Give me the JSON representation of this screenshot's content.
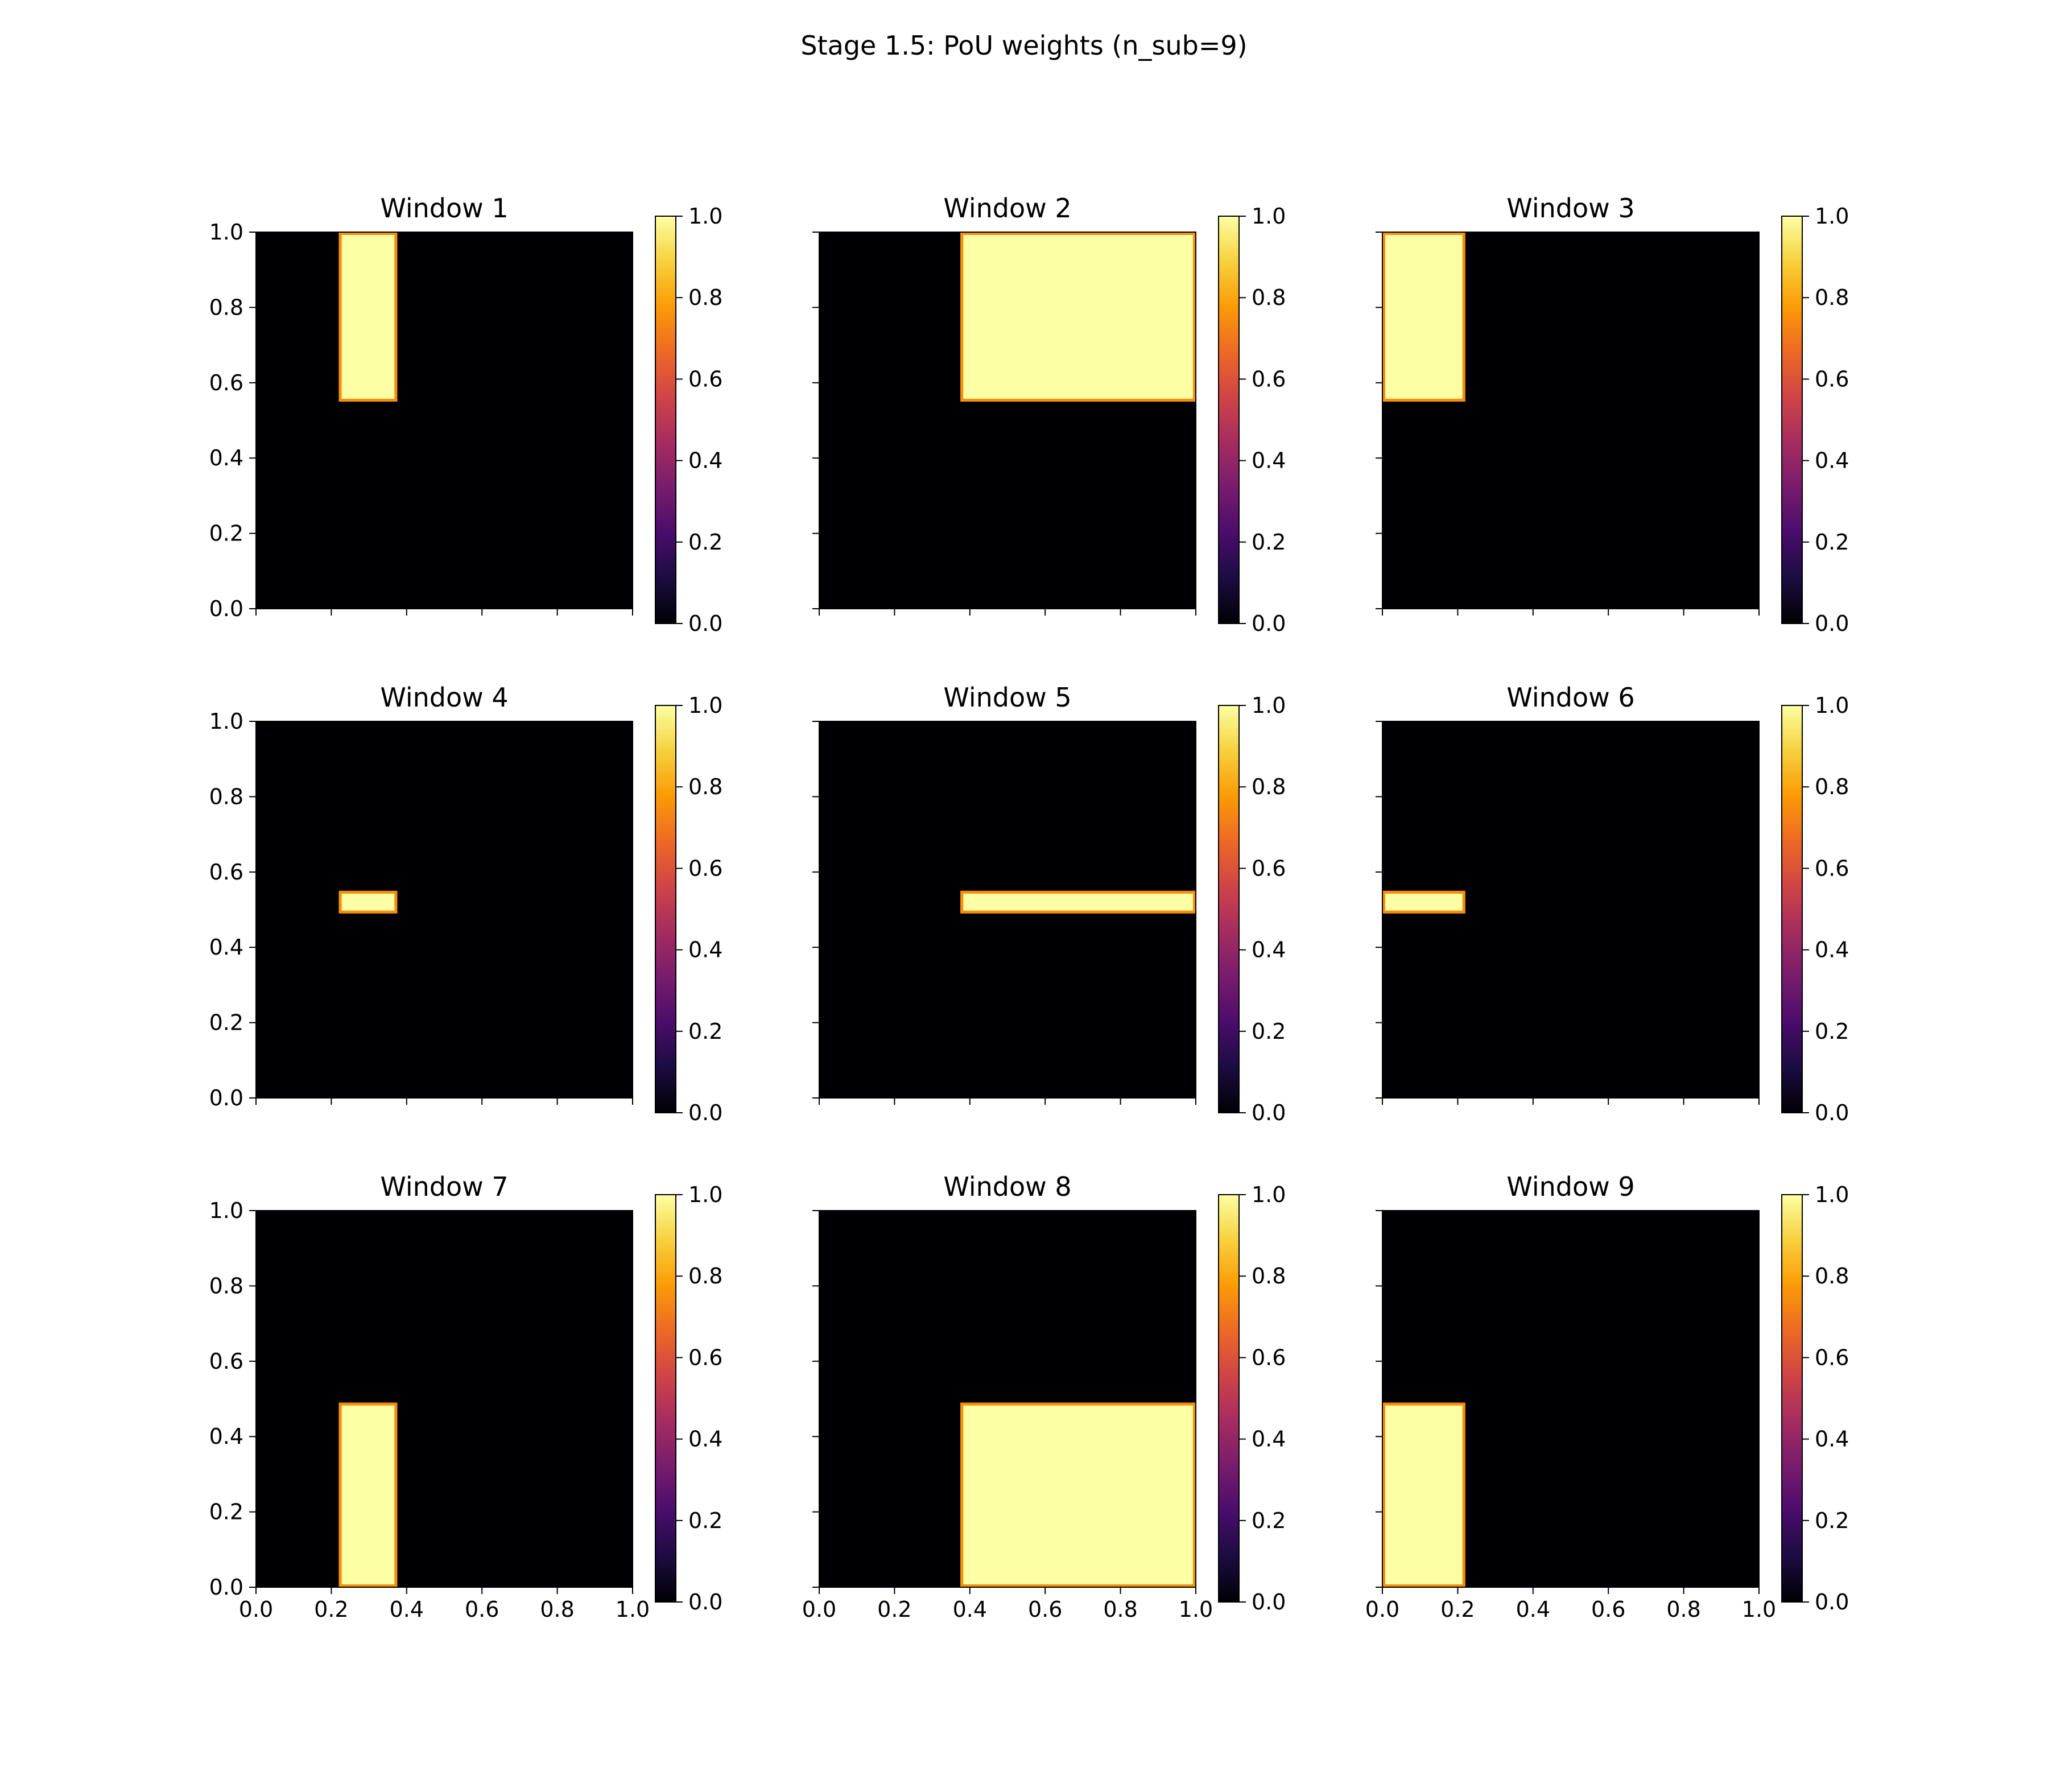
{
  "title": "Stage 1.5: PoU weights (n_sub=9)",
  "colormap": {
    "name": "inferno",
    "stops": [
      "#000004",
      "#1b0c41",
      "#4a0c6b",
      "#781c6d",
      "#a52c60",
      "#cf4446",
      "#ed6925",
      "#fb9b06",
      "#f7d13d",
      "#fcffa4"
    ],
    "ticks": [
      "0.0",
      "0.2",
      "0.4",
      "0.6",
      "0.8",
      "1.0"
    ]
  },
  "chart_data": [
    {
      "type": "heatmap",
      "title": "Window 1",
      "xlim": [
        0,
        1
      ],
      "ylim": [
        0,
        1
      ],
      "clim": [
        0,
        1
      ],
      "background_value": 0,
      "regions": [
        {
          "x": [
            0.22,
            0.375
          ],
          "y": [
            0.55,
            1.0
          ],
          "value": 1
        }
      ],
      "xticks": [
        "0.0",
        "0.2",
        "0.4",
        "0.6",
        "0.8",
        "1.0"
      ],
      "yticks": [
        "0.0",
        "0.2",
        "0.4",
        "0.6",
        "0.8",
        "1.0"
      ],
      "show_xtick_labels": false,
      "show_ytick_labels": true
    },
    {
      "type": "heatmap",
      "title": "Window 2",
      "xlim": [
        0,
        1
      ],
      "ylim": [
        0,
        1
      ],
      "clim": [
        0,
        1
      ],
      "background_value": 0,
      "regions": [
        {
          "x": [
            0.375,
            1.0
          ],
          "y": [
            0.55,
            1.0
          ],
          "value": 1
        }
      ],
      "xticks": [
        "0.0",
        "0.2",
        "0.4",
        "0.6",
        "0.8",
        "1.0"
      ],
      "yticks": [
        "0.0",
        "0.2",
        "0.4",
        "0.6",
        "0.8",
        "1.0"
      ],
      "show_xtick_labels": false,
      "show_ytick_labels": false
    },
    {
      "type": "heatmap",
      "title": "Window 3",
      "xlim": [
        0,
        1
      ],
      "ylim": [
        0,
        1
      ],
      "clim": [
        0,
        1
      ],
      "background_value": 0,
      "regions": [
        {
          "x": [
            0.0,
            0.22
          ],
          "y": [
            0.55,
            1.0
          ],
          "value": 1
        }
      ],
      "xticks": [
        "0.0",
        "0.2",
        "0.4",
        "0.6",
        "0.8",
        "1.0"
      ],
      "yticks": [
        "0.0",
        "0.2",
        "0.4",
        "0.6",
        "0.8",
        "1.0"
      ],
      "show_xtick_labels": false,
      "show_ytick_labels": false
    },
    {
      "type": "heatmap",
      "title": "Window 4",
      "xlim": [
        0,
        1
      ],
      "ylim": [
        0,
        1
      ],
      "clim": [
        0,
        1
      ],
      "background_value": 0,
      "regions": [
        {
          "x": [
            0.22,
            0.375
          ],
          "y": [
            0.49,
            0.55
          ],
          "value": 1
        }
      ],
      "xticks": [
        "0.0",
        "0.2",
        "0.4",
        "0.6",
        "0.8",
        "1.0"
      ],
      "yticks": [
        "0.0",
        "0.2",
        "0.4",
        "0.6",
        "0.8",
        "1.0"
      ],
      "show_xtick_labels": false,
      "show_ytick_labels": true
    },
    {
      "type": "heatmap",
      "title": "Window 5",
      "xlim": [
        0,
        1
      ],
      "ylim": [
        0,
        1
      ],
      "clim": [
        0,
        1
      ],
      "background_value": 0,
      "regions": [
        {
          "x": [
            0.375,
            1.0
          ],
          "y": [
            0.49,
            0.55
          ],
          "value": 1
        }
      ],
      "xticks": [
        "0.0",
        "0.2",
        "0.4",
        "0.6",
        "0.8",
        "1.0"
      ],
      "yticks": [
        "0.0",
        "0.2",
        "0.4",
        "0.6",
        "0.8",
        "1.0"
      ],
      "show_xtick_labels": false,
      "show_ytick_labels": false
    },
    {
      "type": "heatmap",
      "title": "Window 6",
      "xlim": [
        0,
        1
      ],
      "ylim": [
        0,
        1
      ],
      "clim": [
        0,
        1
      ],
      "background_value": 0,
      "regions": [
        {
          "x": [
            0.0,
            0.22
          ],
          "y": [
            0.49,
            0.55
          ],
          "value": 1
        }
      ],
      "xticks": [
        "0.0",
        "0.2",
        "0.4",
        "0.6",
        "0.8",
        "1.0"
      ],
      "yticks": [
        "0.0",
        "0.2",
        "0.4",
        "0.6",
        "0.8",
        "1.0"
      ],
      "show_xtick_labels": false,
      "show_ytick_labels": false
    },
    {
      "type": "heatmap",
      "title": "Window 7",
      "xlim": [
        0,
        1
      ],
      "ylim": [
        0,
        1
      ],
      "clim": [
        0,
        1
      ],
      "background_value": 0,
      "regions": [
        {
          "x": [
            0.22,
            0.375
          ],
          "y": [
            0.0,
            0.49
          ],
          "value": 1
        }
      ],
      "xticks": [
        "0.0",
        "0.2",
        "0.4",
        "0.6",
        "0.8",
        "1.0"
      ],
      "yticks": [
        "0.0",
        "0.2",
        "0.4",
        "0.6",
        "0.8",
        "1.0"
      ],
      "show_xtick_labels": true,
      "show_ytick_labels": true
    },
    {
      "type": "heatmap",
      "title": "Window 8",
      "xlim": [
        0,
        1
      ],
      "ylim": [
        0,
        1
      ],
      "clim": [
        0,
        1
      ],
      "background_value": 0,
      "regions": [
        {
          "x": [
            0.375,
            1.0
          ],
          "y": [
            0.0,
            0.49
          ],
          "value": 1
        }
      ],
      "xticks": [
        "0.0",
        "0.2",
        "0.4",
        "0.6",
        "0.8",
        "1.0"
      ],
      "yticks": [
        "0.0",
        "0.2",
        "0.4",
        "0.6",
        "0.8",
        "1.0"
      ],
      "show_xtick_labels": true,
      "show_ytick_labels": false
    },
    {
      "type": "heatmap",
      "title": "Window 9",
      "xlim": [
        0,
        1
      ],
      "ylim": [
        0,
        1
      ],
      "clim": [
        0,
        1
      ],
      "background_value": 0,
      "regions": [
        {
          "x": [
            0.0,
            0.22
          ],
          "y": [
            0.0,
            0.49
          ],
          "value": 1
        }
      ],
      "xticks": [
        "0.0",
        "0.2",
        "0.4",
        "0.6",
        "0.8",
        "1.0"
      ],
      "yticks": [
        "0.0",
        "0.2",
        "0.4",
        "0.6",
        "0.8",
        "1.0"
      ],
      "show_xtick_labels": true,
      "show_ytick_labels": false
    }
  ]
}
